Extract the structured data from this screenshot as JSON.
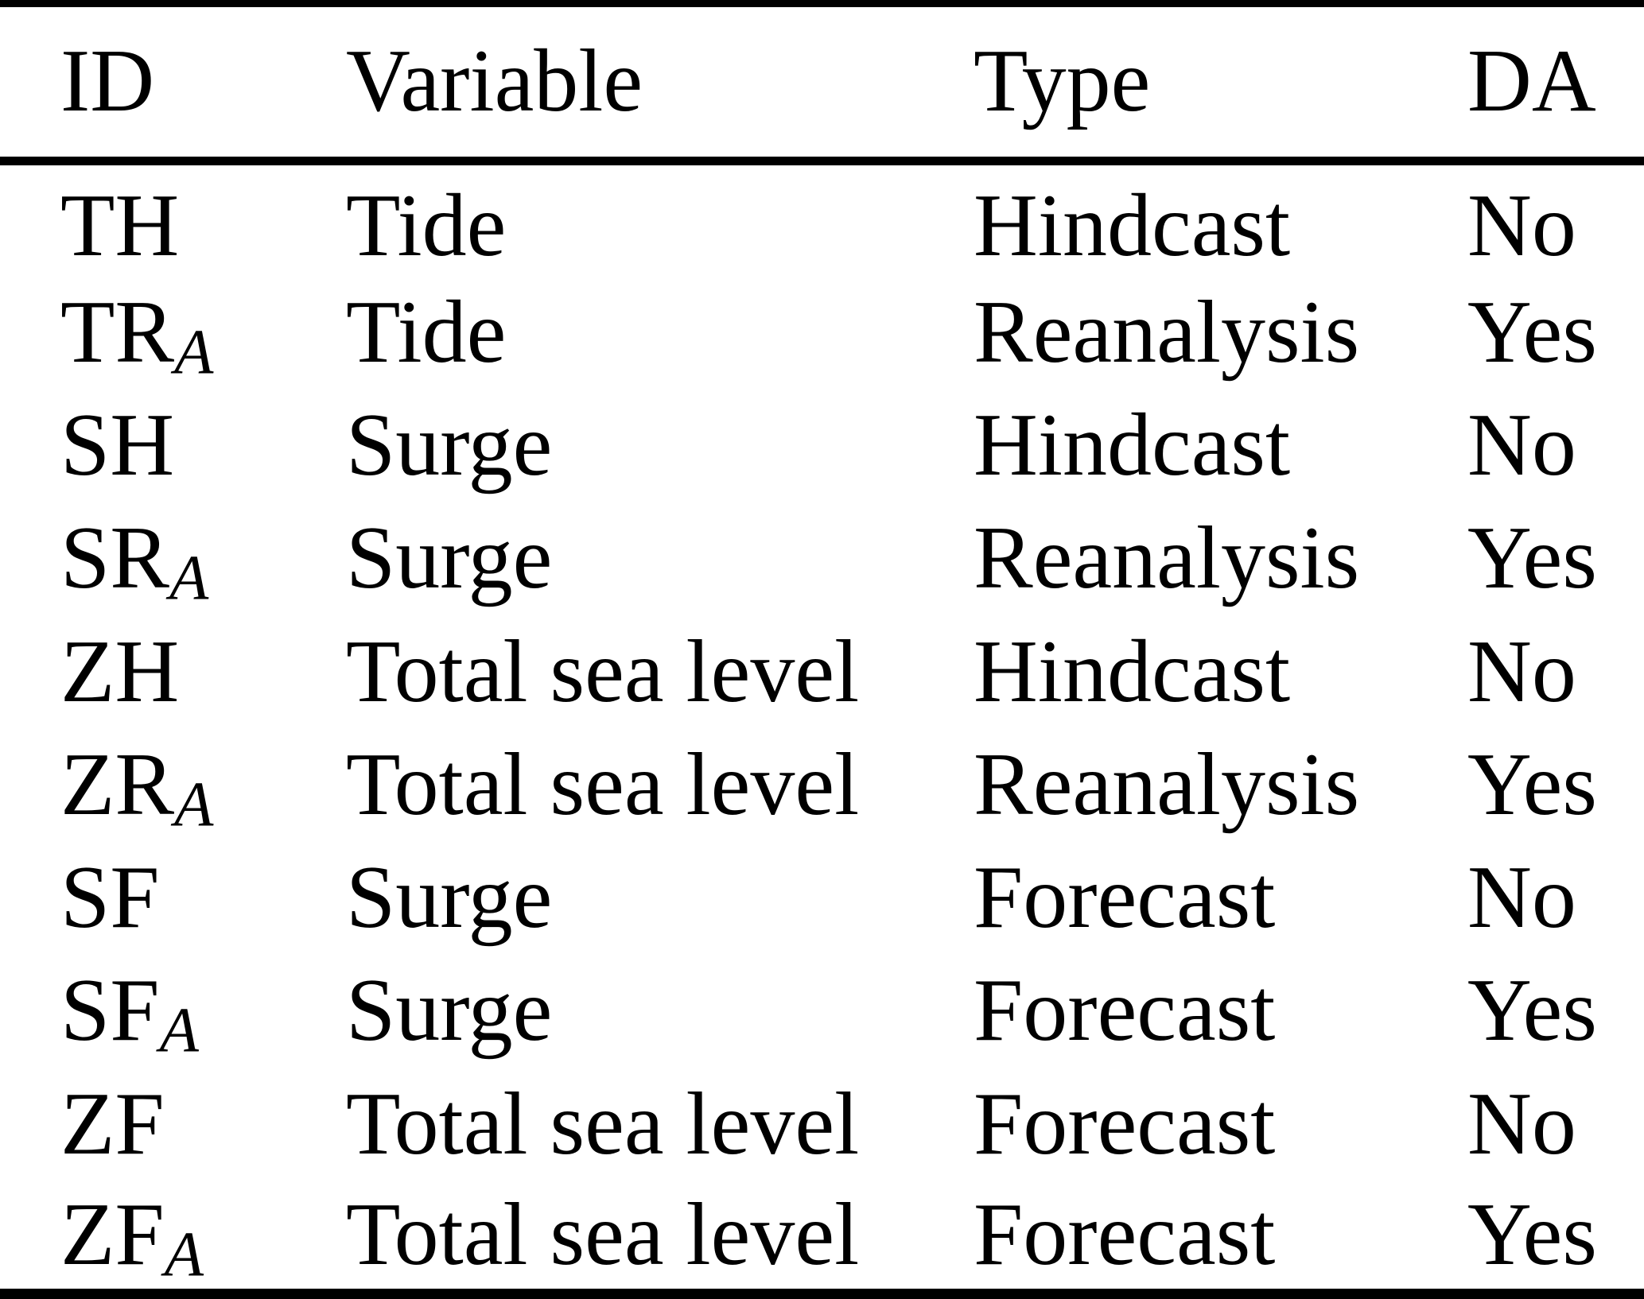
{
  "table": {
    "columns": {
      "id": "ID",
      "variable": "Variable",
      "type": "Type",
      "da": "DA"
    },
    "rows": [
      {
        "id_base": "TH",
        "id_sub": "",
        "variable": "Tide",
        "type": "Hindcast",
        "da": "No"
      },
      {
        "id_base": "TR",
        "id_sub": "A",
        "variable": "Tide",
        "type": "Reanalysis",
        "da": "Yes"
      },
      {
        "id_base": "SH",
        "id_sub": "",
        "variable": "Surge",
        "type": "Hindcast",
        "da": "No"
      },
      {
        "id_base": "SR",
        "id_sub": "A",
        "variable": "Surge",
        "type": "Reanalysis",
        "da": "Yes"
      },
      {
        "id_base": "ZH",
        "id_sub": "",
        "variable": "Total sea level",
        "type": "Hindcast",
        "da": "No"
      },
      {
        "id_base": "ZR",
        "id_sub": "A",
        "variable": "Total sea level",
        "type": "Reanalysis",
        "da": "Yes"
      },
      {
        "id_base": "SF",
        "id_sub": "",
        "variable": "Surge",
        "type": "Forecast",
        "da": "No"
      },
      {
        "id_base": "SF",
        "id_sub": "A",
        "variable": "Surge",
        "type": "Forecast",
        "da": "Yes"
      },
      {
        "id_base": "ZF",
        "id_sub": "",
        "variable": "Total sea level",
        "type": "Forecast",
        "da": "No"
      },
      {
        "id_base": "ZF",
        "id_sub": "A",
        "variable": "Total sea level",
        "type": "Forecast",
        "da": "Yes"
      }
    ],
    "colors": {
      "text": "#000000",
      "background": "#ffffff",
      "rule": "#000000"
    }
  }
}
